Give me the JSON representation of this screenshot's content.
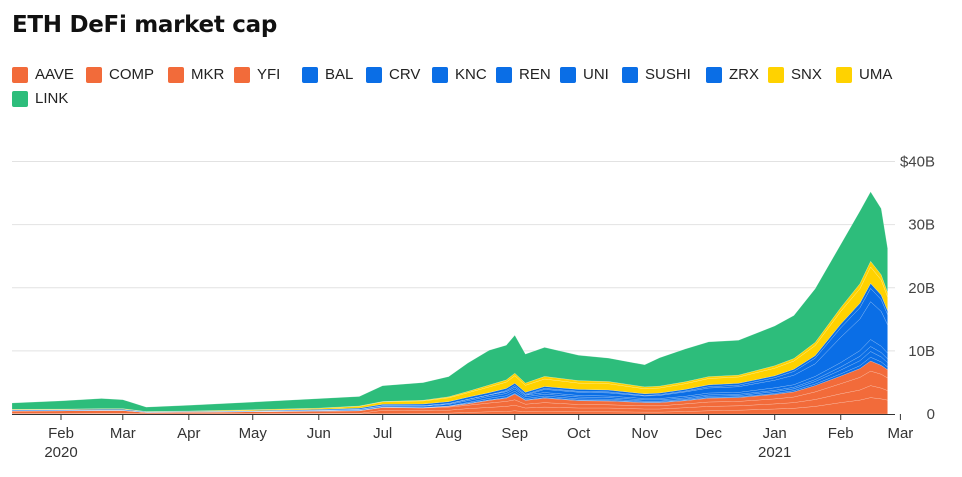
{
  "chart_data": {
    "type": "area",
    "stacked": true,
    "title": "ETH DeFi market cap",
    "legend_placement": "top",
    "grid": true,
    "x_range": [
      "2020-01-09",
      "2021-02-23"
    ],
    "ylim": [
      0,
      45
    ],
    "y_ticks": [
      {
        "value": 0,
        "label": "0"
      },
      {
        "value": 10,
        "label": "10B"
      },
      {
        "value": 20,
        "label": "20B"
      },
      {
        "value": 30,
        "label": "30B"
      },
      {
        "value": 40,
        "label": "$40B"
      }
    ],
    "x_ticks": [
      {
        "date": "2020-02-01",
        "label": "Feb",
        "sublabel": "2020"
      },
      {
        "date": "2020-03-01",
        "label": "Mar"
      },
      {
        "date": "2020-04-01",
        "label": "Apr"
      },
      {
        "date": "2020-05-01",
        "label": "May"
      },
      {
        "date": "2020-06-01",
        "label": "Jun"
      },
      {
        "date": "2020-07-01",
        "label": "Jul"
      },
      {
        "date": "2020-08-01",
        "label": "Aug"
      },
      {
        "date": "2020-09-01",
        "label": "Sep"
      },
      {
        "date": "2020-10-01",
        "label": "Oct"
      },
      {
        "date": "2020-11-01",
        "label": "Nov"
      },
      {
        "date": "2020-12-01",
        "label": "Dec"
      },
      {
        "date": "2021-01-01",
        "label": "Jan",
        "sublabel": "2021"
      },
      {
        "date": "2021-02-01",
        "label": "Feb"
      },
      {
        "date": "2021-03-01",
        "label": "Mar"
      }
    ],
    "dates": [
      "2020-01-09",
      "2020-02-01",
      "2020-02-20",
      "2020-03-01",
      "2020-03-12",
      "2020-04-01",
      "2020-05-01",
      "2020-06-01",
      "2020-06-20",
      "2020-07-01",
      "2020-07-20",
      "2020-08-01",
      "2020-08-10",
      "2020-08-20",
      "2020-08-28",
      "2020-09-01",
      "2020-09-06",
      "2020-09-15",
      "2020-10-01",
      "2020-10-15",
      "2020-11-01",
      "2020-11-08",
      "2020-11-20",
      "2020-12-01",
      "2020-12-15",
      "2021-01-01",
      "2021-01-10",
      "2021-01-20",
      "2021-02-01",
      "2021-02-10",
      "2021-02-15",
      "2021-02-20",
      "2021-02-23"
    ],
    "series": [
      {
        "name": "AAVE",
        "color": "#f26b3a",
        "values": [
          0.04,
          0.04,
          0.05,
          0.05,
          0.02,
          0.02,
          0.03,
          0.05,
          0.05,
          0.08,
          0.1,
          0.15,
          0.25,
          0.35,
          0.4,
          0.5,
          0.35,
          0.4,
          0.35,
          0.35,
          0.3,
          0.3,
          0.4,
          0.5,
          0.6,
          0.8,
          0.9,
          1.2,
          1.8,
          2.2,
          2.6,
          2.4,
          2.2
        ]
      },
      {
        "name": "COMP",
        "color": "#f26b3a",
        "values": [
          0.04,
          0.04,
          0.05,
          0.05,
          0.02,
          0.02,
          0.03,
          0.04,
          0.05,
          0.5,
          0.4,
          0.45,
          0.6,
          0.7,
          0.8,
          0.9,
          0.6,
          0.7,
          0.6,
          0.6,
          0.5,
          0.5,
          0.6,
          0.7,
          0.7,
          0.8,
          0.9,
          1.1,
          1.4,
          1.6,
          1.9,
          1.7,
          1.5
        ]
      },
      {
        "name": "MKR",
        "color": "#f26b3a",
        "values": [
          0.4,
          0.42,
          0.45,
          0.45,
          0.2,
          0.24,
          0.3,
          0.35,
          0.4,
          0.45,
          0.45,
          0.5,
          0.55,
          0.7,
          0.8,
          0.85,
          0.6,
          0.7,
          0.55,
          0.5,
          0.5,
          0.5,
          0.6,
          0.7,
          0.7,
          0.8,
          0.9,
          1.2,
          1.6,
          2.0,
          2.3,
          2.2,
          2.0
        ]
      },
      {
        "name": "YFI",
        "color": "#f26b3a",
        "values": [
          0.01,
          0.01,
          0.01,
          0.01,
          0.01,
          0.01,
          0.01,
          0.01,
          0.01,
          0.01,
          0.02,
          0.1,
          0.2,
          0.4,
          0.5,
          0.9,
          0.6,
          0.7,
          0.6,
          0.6,
          0.5,
          0.5,
          0.5,
          0.6,
          0.6,
          0.7,
          0.8,
          1.0,
          1.2,
          1.4,
          1.6,
          1.4,
          1.3
        ]
      },
      {
        "name": "BAL",
        "color": "#0a6ee6",
        "values": [
          0.001,
          0.001,
          0.001,
          0.001,
          0.001,
          0.001,
          0.001,
          0.05,
          0.06,
          0.06,
          0.06,
          0.06,
          0.08,
          0.09,
          0.1,
          0.12,
          0.09,
          0.1,
          0.1,
          0.1,
          0.1,
          0.1,
          0.1,
          0.12,
          0.12,
          0.15,
          0.2,
          0.25,
          0.35,
          0.45,
          0.6,
          0.55,
          0.45
        ]
      },
      {
        "name": "CRV",
        "color": "#0a6ee6",
        "values": [
          0.001,
          0.001,
          0.001,
          0.001,
          0.001,
          0.001,
          0.001,
          0.001,
          0.001,
          0.001,
          0.001,
          0.01,
          0.15,
          0.25,
          0.3,
          0.35,
          0.2,
          0.25,
          0.2,
          0.2,
          0.15,
          0.15,
          0.15,
          0.2,
          0.2,
          0.3,
          0.3,
          0.4,
          0.6,
          0.8,
          0.9,
          0.8,
          0.7
        ]
      },
      {
        "name": "KNC",
        "color": "#0a6ee6",
        "values": [
          0.02,
          0.025,
          0.03,
          0.03,
          0.015,
          0.02,
          0.03,
          0.06,
          0.12,
          0.15,
          0.2,
          0.25,
          0.3,
          0.3,
          0.35,
          0.35,
          0.3,
          0.3,
          0.3,
          0.25,
          0.2,
          0.2,
          0.2,
          0.2,
          0.2,
          0.2,
          0.25,
          0.3,
          0.5,
          0.7,
          0.8,
          0.7,
          0.6
        ]
      },
      {
        "name": "REN",
        "color": "#0a6ee6",
        "values": [
          0.01,
          0.01,
          0.01,
          0.01,
          0.005,
          0.01,
          0.02,
          0.04,
          0.06,
          0.08,
          0.1,
          0.15,
          0.2,
          0.25,
          0.3,
          0.3,
          0.25,
          0.25,
          0.25,
          0.25,
          0.2,
          0.2,
          0.25,
          0.3,
          0.3,
          0.4,
          0.4,
          0.5,
          0.7,
          0.9,
          1.1,
          1.0,
          0.9
        ]
      },
      {
        "name": "UNI",
        "color": "#0a6ee6",
        "values": [
          0,
          0,
          0,
          0,
          0,
          0,
          0,
          0,
          0,
          0,
          0,
          0,
          0,
          0,
          0,
          0,
          0,
          0.5,
          0.5,
          0.5,
          0.4,
          0.5,
          0.7,
          0.8,
          0.9,
          1.2,
          1.5,
          2.0,
          4.0,
          5.0,
          6.0,
          5.5,
          4.5
        ]
      },
      {
        "name": "SUSHI",
        "color": "#0a6ee6",
        "values": [
          0,
          0,
          0,
          0,
          0,
          0,
          0,
          0,
          0,
          0,
          0,
          0,
          0,
          0,
          0.15,
          0.25,
          0.15,
          0.15,
          0.15,
          0.15,
          0.1,
          0.12,
          0.15,
          0.2,
          0.25,
          0.4,
          0.6,
          0.9,
          1.5,
          1.8,
          2.1,
          1.9,
          1.6
        ]
      },
      {
        "name": "ZRX",
        "color": "#0a6ee6",
        "values": [
          0.12,
          0.13,
          0.14,
          0.14,
          0.07,
          0.08,
          0.1,
          0.12,
          0.18,
          0.2,
          0.25,
          0.3,
          0.35,
          0.35,
          0.35,
          0.35,
          0.3,
          0.3,
          0.3,
          0.3,
          0.25,
          0.25,
          0.25,
          0.3,
          0.3,
          0.3,
          0.35,
          0.4,
          0.6,
          0.7,
          0.8,
          0.7,
          0.6
        ]
      },
      {
        "name": "SNX",
        "color": "#ffd200",
        "values": [
          0.1,
          0.1,
          0.12,
          0.12,
          0.05,
          0.08,
          0.15,
          0.2,
          0.3,
          0.4,
          0.5,
          0.6,
          0.7,
          0.9,
          1.0,
          1.2,
          1.1,
          1.2,
          1.0,
          1.0,
          0.8,
          0.8,
          0.9,
          1.0,
          1.0,
          1.2,
          1.3,
          1.6,
          2.0,
          2.3,
          2.6,
          2.4,
          2.2
        ]
      },
      {
        "name": "UMA",
        "color": "#ffd200",
        "values": [
          0,
          0,
          0,
          0,
          0,
          0,
          0.01,
          0.02,
          0.04,
          0.05,
          0.1,
          0.15,
          0.2,
          0.3,
          0.35,
          0.4,
          0.35,
          0.4,
          0.4,
          0.35,
          0.3,
          0.3,
          0.3,
          0.3,
          0.3,
          0.4,
          0.4,
          0.5,
          0.6,
          0.8,
          0.9,
          0.8,
          0.7
        ]
      },
      {
        "name": "LINK",
        "color": "#2dbd7b",
        "values": [
          1.0,
          1.3,
          1.6,
          1.4,
          0.7,
          0.9,
          1.2,
          1.5,
          1.5,
          2.5,
          2.8,
          3.2,
          4.5,
          5.5,
          5.5,
          6.0,
          4.6,
          4.6,
          4.0,
          3.7,
          3.5,
          4.5,
          5.2,
          5.5,
          5.5,
          6.3,
          6.8,
          8.5,
          10.0,
          11.5,
          11.0,
          10.5,
          7.0
        ]
      }
    ]
  }
}
